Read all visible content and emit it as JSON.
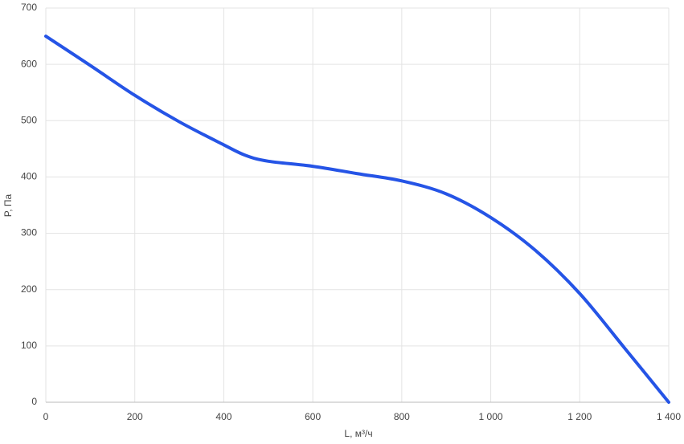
{
  "chart_data": {
    "type": "line",
    "x_label": "L, м³/ч",
    "y_label": "P, Па",
    "x": [
      0,
      100,
      200,
      300,
      400,
      450,
      500,
      600,
      700,
      800,
      900,
      1000,
      1100,
      1200,
      1300,
      1400
    ],
    "values": [
      650,
      598,
      545,
      498,
      457,
      438,
      428,
      419,
      406,
      393,
      370,
      328,
      270,
      193,
      97,
      0
    ],
    "color": "#2554e6",
    "xlim": [
      0,
      1400
    ],
    "xticks": [
      0,
      200,
      400,
      600,
      800,
      {
        "value": 1000,
        "label": "1 000"
      },
      {
        "value": 1200,
        "label": "1 200"
      },
      {
        "value": 1400,
        "label": "1 400"
      }
    ],
    "ylim": [
      0,
      700
    ],
    "yticks": [
      0,
      100,
      200,
      300,
      400,
      500,
      600,
      700
    ],
    "grid": true
  }
}
